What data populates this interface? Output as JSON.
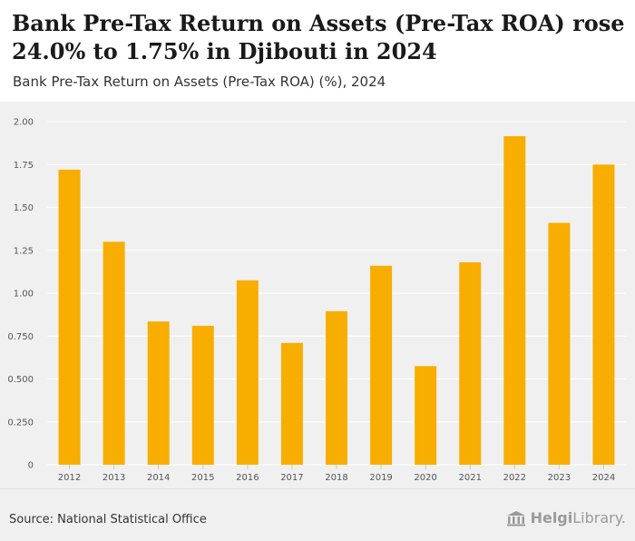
{
  "title": "Bank Pre-Tax Return on Assets (Pre-Tax ROA) rose 24.0% to 1.75% in Djibouti in 2024",
  "subtitle": "Bank Pre-Tax Return on Assets (Pre-Tax ROA) (%), 2024",
  "source": "Source: National Statistical Office",
  "brand": {
    "part1": "Helgi",
    "part2": "Library."
  },
  "colors": {
    "bar": "#F7AE00",
    "plot_bg": "#F0F0F0",
    "grid": "#FFFFFF",
    "axis_text": "#555555"
  },
  "chart_data": {
    "type": "bar",
    "title": "Bank Pre-Tax Return on Assets (Pre-Tax ROA) (%), 2024",
    "xlabel": "",
    "ylabel": "",
    "categories": [
      "2012",
      "2013",
      "2014",
      "2015",
      "2016",
      "2017",
      "2018",
      "2019",
      "2020",
      "2021",
      "2022",
      "2023",
      "2024"
    ],
    "values": [
      1.72,
      1.3,
      0.835,
      0.81,
      1.075,
      0.71,
      0.895,
      1.16,
      0.575,
      1.18,
      1.915,
      1.41,
      1.75
    ],
    "ylim": [
      0,
      2.0
    ],
    "yticks": [
      0,
      0.25,
      0.5,
      0.75,
      1.0,
      1.25,
      1.5,
      1.75,
      2.0
    ],
    "ytick_labels": [
      "0",
      "0.250",
      "0.500",
      "0.750",
      "1.00",
      "1.25",
      "1.50",
      "1.75",
      "2.00"
    ],
    "grid": true
  }
}
